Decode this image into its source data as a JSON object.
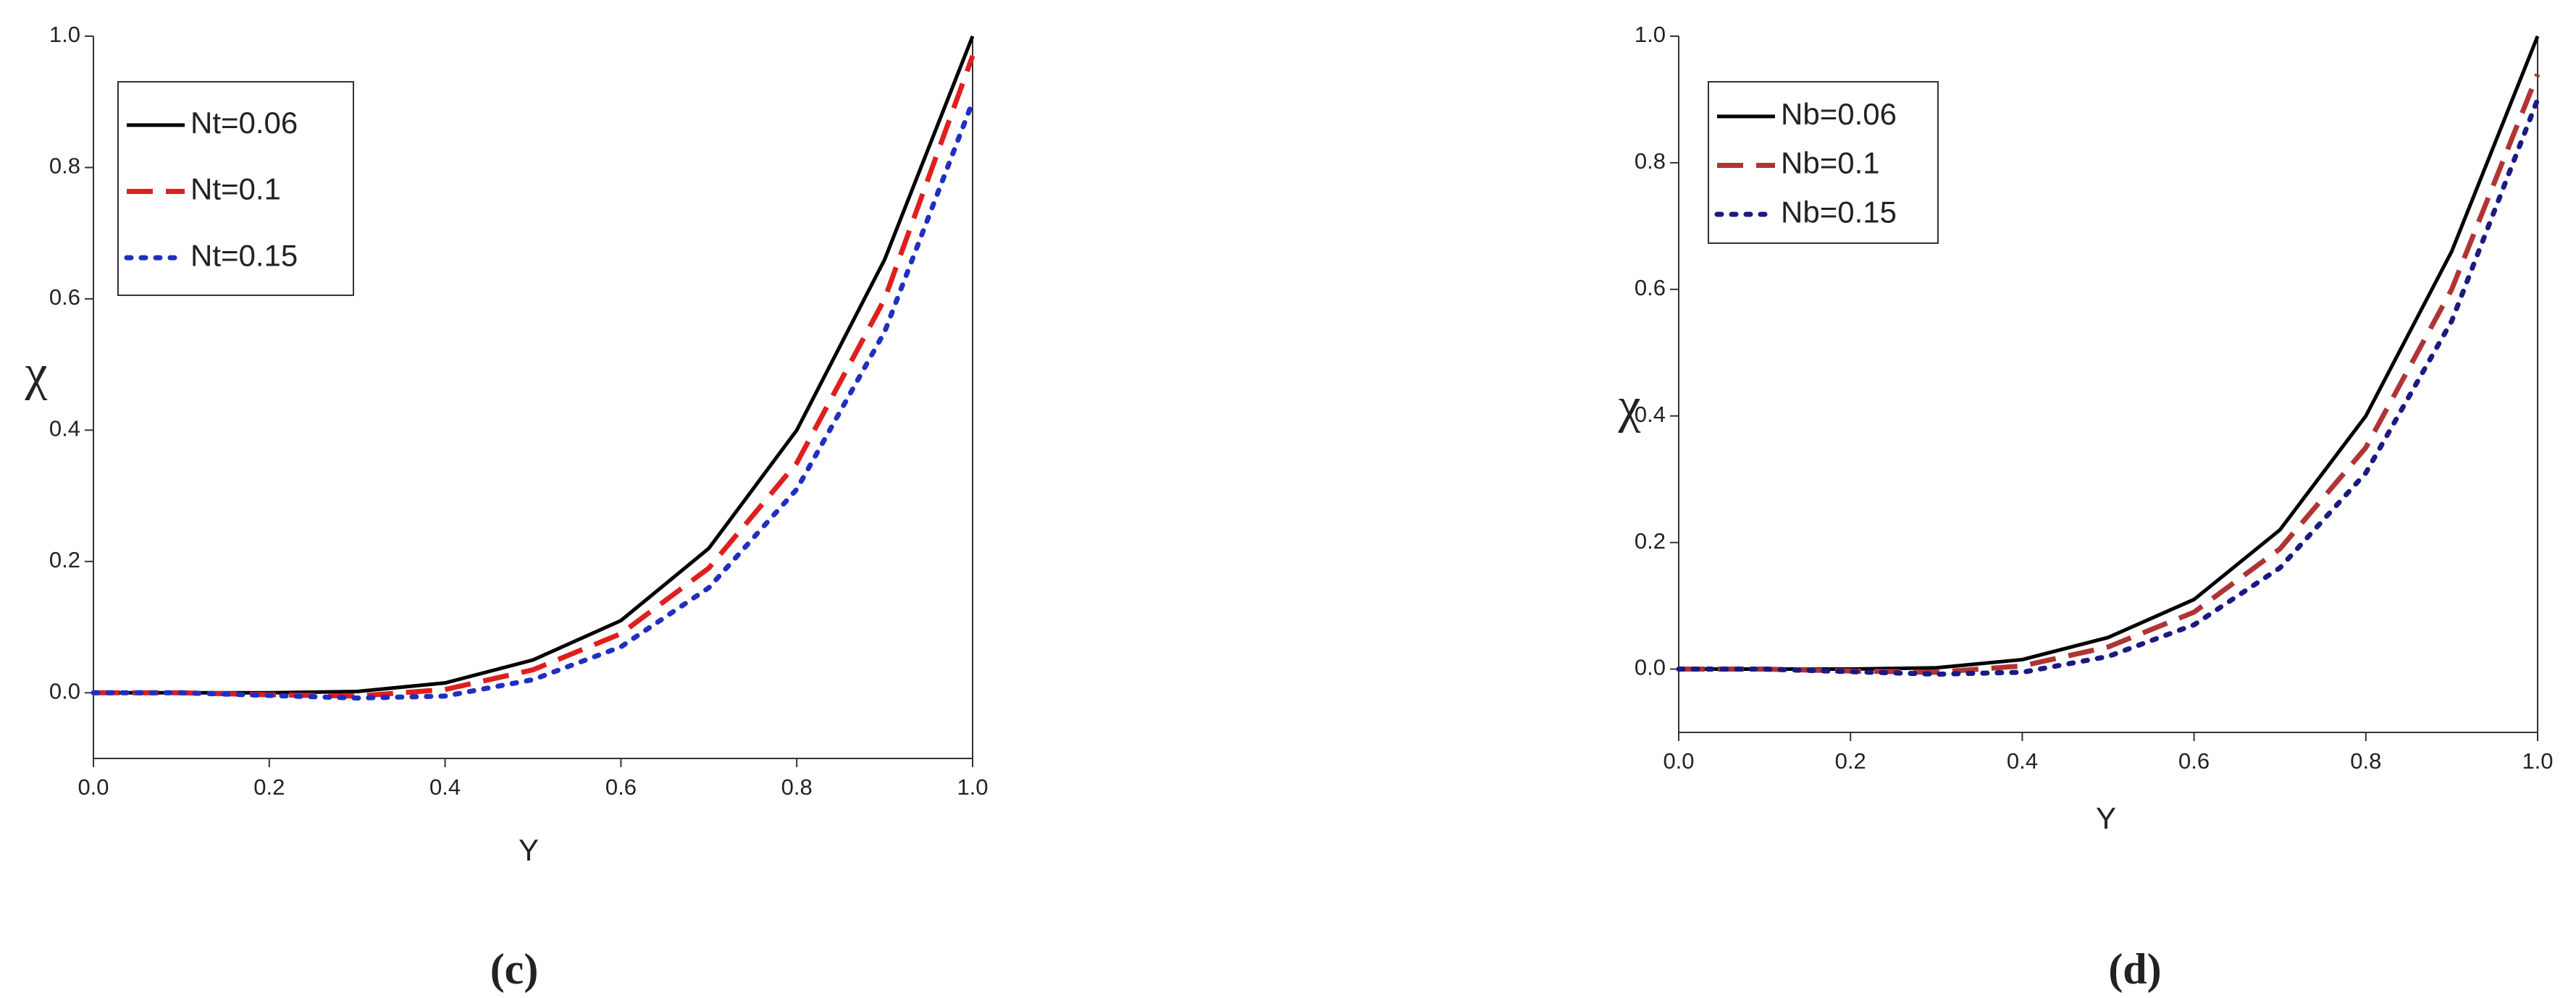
{
  "chart_data": [
    {
      "type": "line",
      "caption": "(c)",
      "xlabel": "Y",
      "ylabel": "χ",
      "x": [
        0,
        0.1,
        0.2,
        0.3,
        0.4,
        0.5,
        0.6,
        0.7,
        0.8,
        0.9,
        1.0
      ],
      "xlim": [
        0,
        1.0
      ],
      "ylim": [
        -0.1,
        1.0
      ],
      "xticks": [
        {
          "value": 0,
          "label": "0.0"
        },
        0.2,
        0.4,
        0.6,
        0.8,
        {
          "value": 1,
          "label": "1.0"
        }
      ],
      "yticks": [
        {
          "value": 0,
          "label": "0.0"
        },
        0.2,
        0.4,
        0.6,
        0.8,
        {
          "value": 1,
          "label": "1.0"
        }
      ],
      "legend": "upper left",
      "series": [
        {
          "name": "Nt=0.06",
          "color": "#000000",
          "style": "solid",
          "values": [
            0,
            0,
            0,
            0.002,
            0.015,
            0.05,
            0.11,
            0.22,
            0.4,
            0.66,
            1.0
          ]
        },
        {
          "name": "Nt=0.1",
          "color": "#e01e1e",
          "style": "dashed",
          "values": [
            0,
            0,
            -0.003,
            -0.005,
            0.005,
            0.035,
            0.09,
            0.19,
            0.35,
            0.6,
            0.97
          ]
        },
        {
          "name": "Nt=0.15",
          "color": "#1f2fc0",
          "style": "dotted",
          "values": [
            0,
            0,
            -0.004,
            -0.008,
            -0.005,
            0.02,
            0.07,
            0.16,
            0.31,
            0.55,
            0.9
          ]
        }
      ]
    },
    {
      "type": "line",
      "caption": "(d)",
      "xlabel": "Y",
      "ylabel": "χ",
      "x": [
        0,
        0.1,
        0.2,
        0.3,
        0.4,
        0.5,
        0.6,
        0.7,
        0.8,
        0.9,
        1.0
      ],
      "xlim": [
        0,
        1.0
      ],
      "ylim": [
        -0.1,
        1.0
      ],
      "xticks": [
        {
          "value": 0,
          "label": "0.0"
        },
        0.2,
        0.4,
        0.6,
        0.8,
        {
          "value": 1,
          "label": "1.0"
        }
      ],
      "yticks": [
        {
          "value": 0,
          "label": "0.0"
        },
        0.2,
        0.4,
        0.6,
        0.8,
        {
          "value": 1,
          "label": "1.0"
        }
      ],
      "legend": "upper left",
      "series": [
        {
          "name": "Nb=0.06",
          "color": "#000000",
          "style": "solid",
          "values": [
            0,
            0,
            0,
            0.002,
            0.015,
            0.05,
            0.11,
            0.22,
            0.4,
            0.66,
            1.0
          ]
        },
        {
          "name": "Nb=0.1",
          "color": "#b03434",
          "style": "dashed",
          "values": [
            0,
            0,
            -0.003,
            -0.005,
            0.005,
            0.035,
            0.09,
            0.19,
            0.35,
            0.6,
            0.94
          ]
        },
        {
          "name": "Nb=0.15",
          "color": "#1a1a80",
          "style": "dotted",
          "values": [
            0,
            0,
            -0.004,
            -0.008,
            -0.005,
            0.02,
            0.07,
            0.16,
            0.31,
            0.55,
            0.9
          ]
        }
      ]
    }
  ]
}
